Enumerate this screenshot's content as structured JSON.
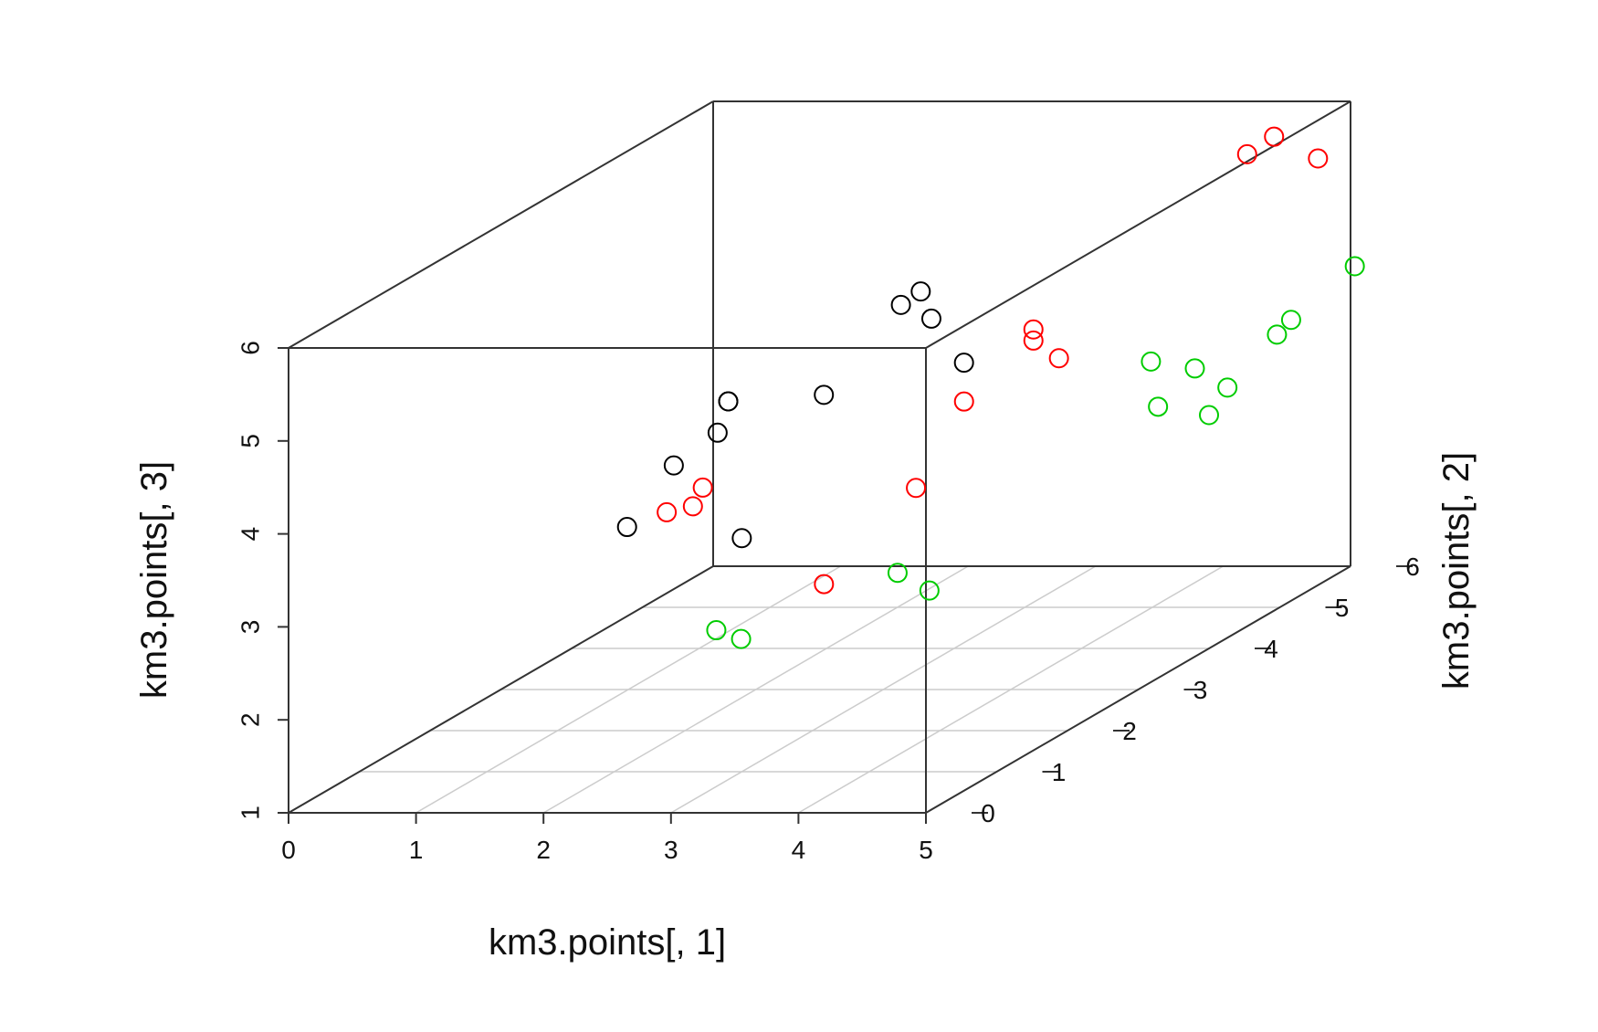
{
  "chart_data": {
    "type": "scatter",
    "subtype": "scatterplot3d",
    "title": "",
    "xlabel": "km3.points[, 1]",
    "ylabel": "km3.points[, 2]",
    "zlabel": "km3.points[, 3]",
    "xlim": [
      0,
      5
    ],
    "ylim": [
      0,
      6
    ],
    "zlim": [
      1,
      6
    ],
    "x_ticks": [
      "0",
      "1",
      "2",
      "3",
      "4",
      "5"
    ],
    "y_ticks": [
      "0",
      "1",
      "2",
      "3",
      "4",
      "5",
      "6"
    ],
    "z_ticks": [
      "1",
      "2",
      "3",
      "4",
      "5",
      "6"
    ],
    "grid": true,
    "box": true,
    "marker": "open-circle",
    "colors": {
      "black": "#000000",
      "red": "#ff0000",
      "green": "#00cc00",
      "axis": "#333333",
      "grid": "#cccccc"
    },
    "series": [
      {
        "color": "black",
        "points": [
          [
            2.45,
            1.8,
            4.63
          ],
          [
            2.45,
            1.8,
            4.63
          ],
          [
            2.8,
            0.4,
            4.56
          ],
          [
            3.2,
            1.8,
            4.7
          ],
          [
            2.6,
            0.1,
            4.03
          ],
          [
            2.25,
            4.6,
            4.43
          ],
          [
            2.35,
            4.7,
            4.53
          ],
          [
            2.6,
            4.4,
            4.37
          ],
          [
            3.3,
            3.6,
            4.25
          ],
          [
            2.2,
            2.1,
            4.16
          ],
          [
            3.5,
            0.1,
            3.91
          ]
        ]
      },
      {
        "color": "red",
        "points": [
          [
            2.8,
            0.3,
            4.1
          ],
          [
            2.75,
            0.9,
            4.1
          ],
          [
            2.95,
            0.4,
            4.12
          ],
          [
            3.8,
            2.7,
            4.23
          ],
          [
            4.2,
            0.0,
            3.46
          ],
          [
            4.2,
            1.3,
            3.92
          ],
          [
            4.4,
            2.6,
            4.93
          ],
          [
            4.4,
            2.6,
            5.05
          ],
          [
            4.6,
            2.6,
            4.74
          ],
          [
            4.3,
            5.8,
            5.52
          ],
          [
            4.4,
            6.0,
            5.62
          ],
          [
            4.8,
            5.9,
            5.43
          ]
        ]
      },
      {
        "color": "green",
        "points": [
          [
            3.3,
            0.1,
            2.92
          ],
          [
            3.55,
            0.0,
            2.87
          ],
          [
            4.5,
            0.5,
            3.36
          ],
          [
            4.75,
            0.5,
            3.17
          ],
          [
            4.6,
            4.0,
            3.6
          ],
          [
            5.0,
            4.0,
            3.51
          ],
          [
            4.6,
            3.9,
            4.13
          ],
          [
            5.0,
            3.8,
            4.1
          ],
          [
            5.2,
            3.9,
            3.85
          ],
          [
            5.2,
            4.6,
            4.11
          ],
          [
            5.2,
            4.8,
            4.18
          ],
          [
            5.2,
            5.7,
            4.36
          ]
        ]
      }
    ]
  }
}
